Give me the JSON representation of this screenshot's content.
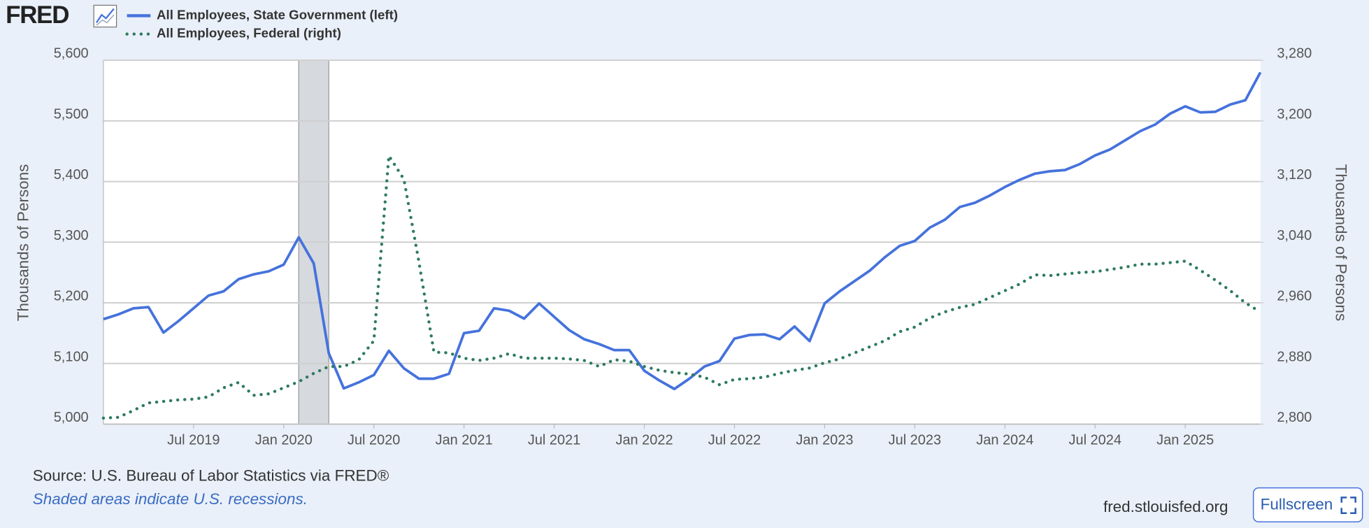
{
  "header": {
    "logo": "FRED"
  },
  "chart_data": {
    "type": "line",
    "ylabel": "Thousands of Persons",
    "y2label": "Thousands of Persons",
    "x": [
      "2019-01",
      "2019-02",
      "2019-03",
      "2019-04",
      "2019-05",
      "2019-06",
      "2019-07",
      "2019-08",
      "2019-09",
      "2019-10",
      "2019-11",
      "2019-12",
      "2020-01",
      "2020-02",
      "2020-03",
      "2020-04",
      "2020-05",
      "2020-06",
      "2020-07",
      "2020-08",
      "2020-09",
      "2020-10",
      "2020-11",
      "2020-12",
      "2021-01",
      "2021-02",
      "2021-03",
      "2021-04",
      "2021-05",
      "2021-06",
      "2021-07",
      "2021-08",
      "2021-09",
      "2021-10",
      "2021-11",
      "2021-12",
      "2022-01",
      "2022-02",
      "2022-03",
      "2022-04",
      "2022-05",
      "2022-06",
      "2022-07",
      "2022-08",
      "2022-09",
      "2022-10",
      "2022-11",
      "2022-12",
      "2023-01",
      "2023-02",
      "2023-03",
      "2023-04",
      "2023-05",
      "2023-06",
      "2023-07",
      "2023-08",
      "2023-09",
      "2023-10",
      "2023-11",
      "2023-12",
      "2024-01",
      "2024-02",
      "2024-03",
      "2024-04",
      "2024-05",
      "2024-06",
      "2024-07",
      "2024-08",
      "2024-09",
      "2024-10",
      "2024-11",
      "2024-12",
      "2025-01",
      "2025-02",
      "2025-03",
      "2025-04",
      "2025-05",
      "2025-06"
    ],
    "xlim": [
      "2019-01",
      "2025-06"
    ],
    "xticks": [
      {
        "value": "2019-07",
        "label": "Jul 2019"
      },
      {
        "value": "2020-01",
        "label": "Jan 2020"
      },
      {
        "value": "2020-07",
        "label": "Jul 2020"
      },
      {
        "value": "2021-01",
        "label": "Jan 2021"
      },
      {
        "value": "2021-07",
        "label": "Jul 2021"
      },
      {
        "value": "2022-01",
        "label": "Jan 2022"
      },
      {
        "value": "2022-07",
        "label": "Jul 2022"
      },
      {
        "value": "2023-01",
        "label": "Jan 2023"
      },
      {
        "value": "2023-07",
        "label": "Jul 2023"
      },
      {
        "value": "2024-01",
        "label": "Jan 2024"
      },
      {
        "value": "2024-07",
        "label": "Jul 2024"
      },
      {
        "value": "2025-01",
        "label": "Jan 2025"
      }
    ],
    "ylim": [
      5000,
      5600
    ],
    "yticks": [
      {
        "value": 5000,
        "label": "5,000"
      },
      {
        "value": 5100,
        "label": "5,100"
      },
      {
        "value": 5200,
        "label": "5,200"
      },
      {
        "value": 5300,
        "label": "5,300"
      },
      {
        "value": 5400,
        "label": "5,400"
      },
      {
        "value": 5500,
        "label": "5,500"
      },
      {
        "value": 5600,
        "label": "5,600"
      }
    ],
    "y2lim": [
      2800,
      3280
    ],
    "y2ticks": [
      {
        "value": 2800,
        "label": "2,800"
      },
      {
        "value": 2880,
        "label": "2,880"
      },
      {
        "value": 2960,
        "label": "2,960"
      },
      {
        "value": 3040,
        "label": "3,040"
      },
      {
        "value": 3120,
        "label": "3,120"
      },
      {
        "value": 3200,
        "label": "3,200"
      },
      {
        "value": 3280,
        "label": "3,280"
      }
    ],
    "grid": true,
    "recessions": [
      {
        "start": "2020-02",
        "end": "2020-04"
      }
    ],
    "series": [
      {
        "name": "All Employees, State Government (left)",
        "color": "#4572dc",
        "style": "solid",
        "values": [
          5173,
          5181,
          5191,
          5193,
          5151,
          5170,
          5191,
          5212,
          5219,
          5239,
          5247,
          5252,
          5263,
          5308,
          5265,
          5117,
          5059,
          5069,
          5081,
          5121,
          5092,
          5075,
          5075,
          5083,
          5150,
          5154,
          5191,
          5187,
          5174,
          5199,
          5177,
          5155,
          5140,
          5132,
          5122,
          5122,
          5088,
          5072,
          5058,
          5075,
          5095,
          5104,
          5141,
          5147,
          5148,
          5140,
          5161,
          5137,
          5199,
          5219,
          5236,
          5253,
          5275,
          5294,
          5302,
          5324,
          5337,
          5358,
          5365,
          5377,
          5391,
          5403,
          5413,
          5417,
          5419,
          5429,
          5443,
          5453,
          5468,
          5483,
          5494,
          5512,
          5524,
          5514,
          5515,
          5527,
          5534,
          5580
        ]
      },
      {
        "name": "All Employees, Federal (right)",
        "color": "#2e7b5c",
        "style": "dotted",
        "axis": "y2",
        "values": [
          2808,
          2809,
          2818,
          2828,
          2830,
          2832,
          2833,
          2836,
          2848,
          2855,
          2838,
          2840,
          2848,
          2856,
          2867,
          2876,
          2876,
          2885,
          2910,
          3154,
          3123,
          3014,
          2895,
          2894,
          2887,
          2884,
          2887,
          2893,
          2887,
          2887,
          2887,
          2886,
          2884,
          2876,
          2885,
          2883,
          2876,
          2871,
          2868,
          2866,
          2862,
          2852,
          2859,
          2860,
          2862,
          2867,
          2871,
          2874,
          2881,
          2886,
          2894,
          2902,
          2910,
          2922,
          2928,
          2940,
          2948,
          2954,
          2958,
          2967,
          2976,
          2985,
          2997,
          2996,
          2998,
          3000,
          3001,
          3004,
          3007,
          3011,
          3011,
          3013,
          3015,
          3003,
          2990,
          2976,
          2960,
          2948
        ]
      }
    ]
  },
  "footer": {
    "source": "Source: U.S. Bureau of Labor Statistics via FRED®",
    "note": "Shaded areas indicate U.S. recessions.",
    "site": "fred.stlouisfed.org",
    "button": "Fullscreen"
  }
}
